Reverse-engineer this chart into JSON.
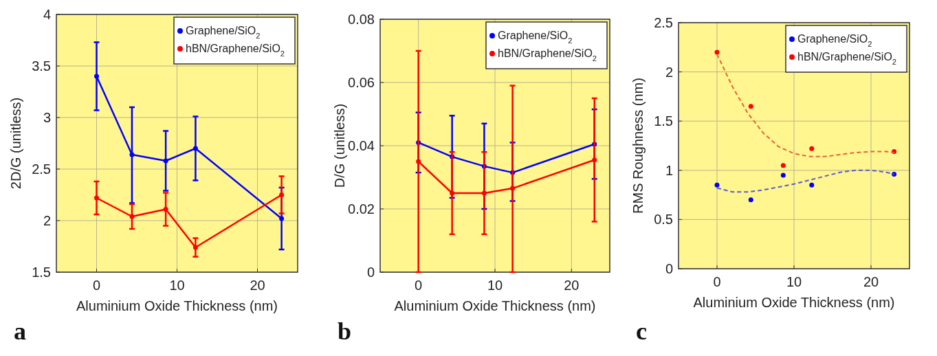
{
  "chart_data": [
    {
      "type": "line",
      "xlabel": "Aluminium Oxide Thickness (nm)",
      "ylabel": "2D/G (unitless)",
      "x": [
        0,
        4.4,
        8.6,
        12.3,
        23
      ],
      "xlim": [
        -5,
        25
      ],
      "xticks": [
        0,
        10,
        20
      ],
      "ylim": [
        1.5,
        4
      ],
      "yticks": [
        1.5,
        2,
        2.5,
        3,
        3.5,
        4
      ],
      "grid": true,
      "legend": "top right",
      "marker": "circle",
      "annotations": [
        "a"
      ],
      "series": [
        {
          "name": "Graphene/SiO$_{2}$",
          "color": "#0000ff",
          "values": [
            3.4,
            2.64,
            2.58,
            2.7,
            2.02
          ],
          "errors": [
            [
              3.07,
              3.73
            ],
            [
              2.17,
              3.1
            ],
            [
              2.29,
              2.87
            ],
            [
              2.39,
              3.01
            ],
            [
              1.72,
              2.32
            ]
          ]
        },
        {
          "name": "hBN/Graphene/SiO$_{2}$",
          "color": "#ff0000",
          "values": [
            2.22,
            2.04,
            2.11,
            1.74,
            2.25
          ],
          "errors": [
            [
              2.06,
              2.38
            ],
            [
              1.92,
              2.16
            ],
            [
              1.95,
              2.27
            ],
            [
              1.65,
              1.83
            ],
            [
              2.07,
              2.43
            ]
          ]
        }
      ]
    },
    {
      "type": "line",
      "xlabel": "Aluminium Oxide Thickness (nm)",
      "ylabel": "D/G (unitless)",
      "x": [
        0,
        4.4,
        8.6,
        12.3,
        23
      ],
      "xlim": [
        -5,
        25
      ],
      "xticks": [
        0,
        10,
        20
      ],
      "ylim": [
        0,
        0.08
      ],
      "yticks": [
        0,
        0.02,
        0.04,
        0.06,
        0.08
      ],
      "grid": true,
      "legend": "top right",
      "marker": "circle",
      "annotations": [
        "b"
      ],
      "series": [
        {
          "name": "Graphene/SiO$_{2}$",
          "color": "#0000ff",
          "values": [
            0.041,
            0.0365,
            0.0335,
            0.0315,
            0.0405
          ],
          "errors": [
            [
              0.0315,
              0.0505
            ],
            [
              0.0235,
              0.0495
            ],
            [
              0.02,
              0.047
            ],
            [
              0.0225,
              0.041
            ],
            [
              0.0295,
              0.0515
            ]
          ]
        },
        {
          "name": "hBN/Graphene/SiO$_{2}$",
          "color": "#ff0000",
          "values": [
            0.035,
            0.025,
            0.025,
            0.0265,
            0.0355
          ],
          "errors": [
            [
              0,
              0.07
            ],
            [
              0.012,
              0.038
            ],
            [
              0.012,
              0.038
            ],
            [
              0,
              0.059
            ],
            [
              0.016,
              0.055
            ]
          ]
        }
      ]
    },
    {
      "type": "scatter",
      "xlabel": "Aluminium Oxide Thickness (nm)",
      "ylabel": "RMS Roughness (nm)",
      "x": [
        0,
        4.4,
        8.6,
        12.3,
        23
      ],
      "xlim": [
        -5,
        25
      ],
      "xticks": [
        0,
        10,
        20
      ],
      "ylim": [
        0,
        2.5
      ],
      "yticks": [
        0,
        0.5,
        1,
        1.5,
        2,
        2.5
      ],
      "grid": true,
      "legend": "top right",
      "marker": "circle",
      "annotations": [
        "c"
      ],
      "series": [
        {
          "name": "Graphene/SiO$_{2}$",
          "color": "#0000ff",
          "values": [
            0.85,
            0.7,
            0.95,
            0.85,
            0.96
          ]
        },
        {
          "name": "hBN/Graphene/SiO$_{2}$",
          "color": "#ff0000",
          "values": [
            2.2,
            1.65,
            1.05,
            1.22,
            1.19
          ]
        },
        {
          "type": "line",
          "line_style": "dashed",
          "marker": "none",
          "color": "#5a5ad0",
          "x": [
            0,
            2,
            4,
            6,
            8,
            10,
            12,
            14,
            16,
            18,
            20,
            22,
            23
          ],
          "values": [
            0.82,
            0.78,
            0.78,
            0.8,
            0.83,
            0.86,
            0.9,
            0.94,
            0.98,
            1.0,
            1.0,
            0.98,
            0.96
          ]
        },
        {
          "type": "line",
          "line_style": "dashed",
          "marker": "none",
          "color": "#e8603a",
          "x": [
            0,
            2,
            4,
            6,
            8,
            10,
            12,
            14,
            16,
            18,
            20,
            22,
            23
          ],
          "values": [
            2.18,
            1.85,
            1.58,
            1.38,
            1.24,
            1.17,
            1.14,
            1.14,
            1.16,
            1.18,
            1.19,
            1.19,
            1.18
          ]
        }
      ]
    }
  ]
}
